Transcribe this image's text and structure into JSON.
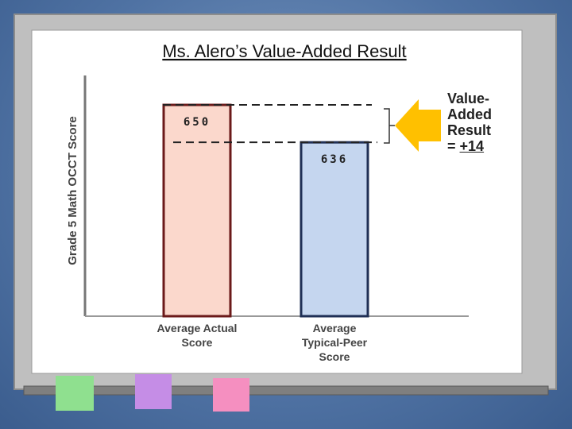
{
  "chart_data": {
    "type": "bar",
    "title": "Ms. Alero’s Value-Added Result",
    "y_label": "Grade 5 Math OCCT Score",
    "categories": [
      "Average Actual Score",
      "Average Typical-Peer Score"
    ],
    "values": [
      650,
      636
    ],
    "colors": [
      "#fbd8cc",
      "#c5d6ef"
    ],
    "borders": [
      "#6b1a1a",
      "#1f2f55"
    ],
    "ylim": [
      571,
      661
    ],
    "annotation": {
      "lines": [
        "Value-",
        "Added",
        "Result"
      ],
      "prefix": "=",
      "value": "+14"
    }
  }
}
